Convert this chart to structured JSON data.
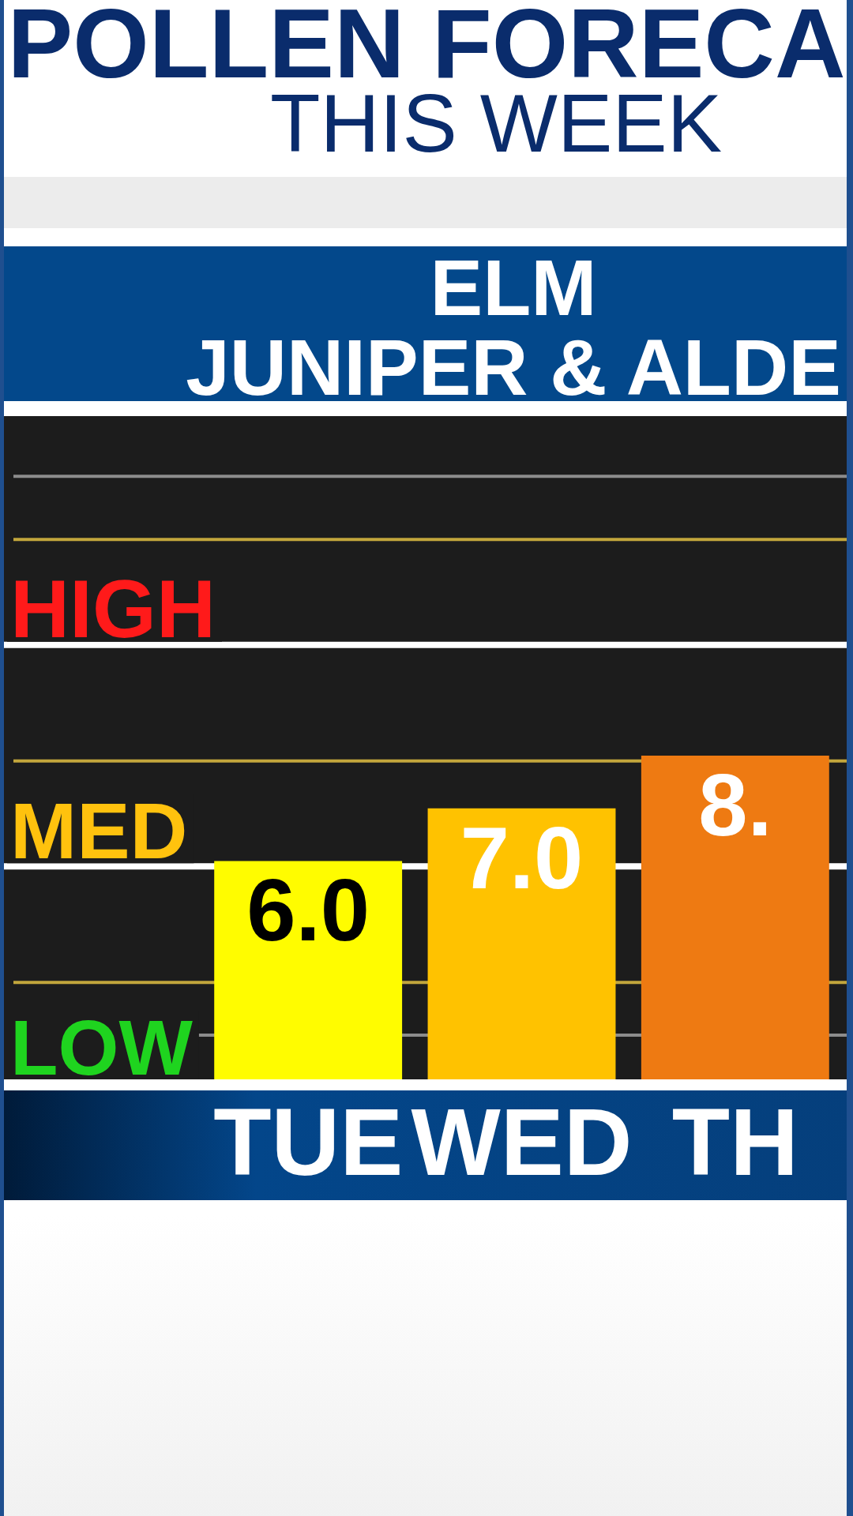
{
  "chart_data": {
    "type": "bar",
    "title": "POLLEN FORECA",
    "subtitle": "THIS WEEK",
    "annotations": [
      "ELM",
      "JUNIPER & ALDE"
    ],
    "categories": [
      "TUE",
      "WED",
      "TH"
    ],
    "values": [
      6.0,
      7.0,
      8.0
    ],
    "colors": [
      "#fffc00",
      "#ffc200",
      "#ee7a12"
    ],
    "value_labels": [
      "6.0",
      "7.0",
      "8."
    ],
    "ylim": [
      1.8,
      14.5
    ],
    "tick_labels": "x",
    "bands": [
      {
        "axis": "y",
        "from": 1.8,
        "to": 5.9,
        "label": "LOW",
        "color": "#1c1c1c"
      },
      {
        "axis": "y",
        "from": 5.9,
        "to": 10.1,
        "label": "MED",
        "color": "#1c1c1c"
      },
      {
        "axis": "y",
        "from": 10.1,
        "to": 14.5,
        "label": "HIGH",
        "color": "#1c1c1c"
      }
    ],
    "ref_lines": [
      {
        "axis": "y",
        "value": 2.7,
        "color": "#8c8c8c"
      },
      {
        "axis": "y",
        "value": 3.7,
        "color": "#c2a63c"
      },
      {
        "axis": "y",
        "value": 5.9,
        "color": "#ffffff"
      },
      {
        "axis": "y",
        "value": 7.9,
        "color": "#c2a63c"
      },
      {
        "axis": "y",
        "value": 10.1,
        "color": "#ffffff"
      },
      {
        "axis": "y",
        "value": 12.1,
        "color": "#c2a63c"
      },
      {
        "axis": "y",
        "value": 13.3,
        "color": "#8c8c8c"
      }
    ]
  }
}
